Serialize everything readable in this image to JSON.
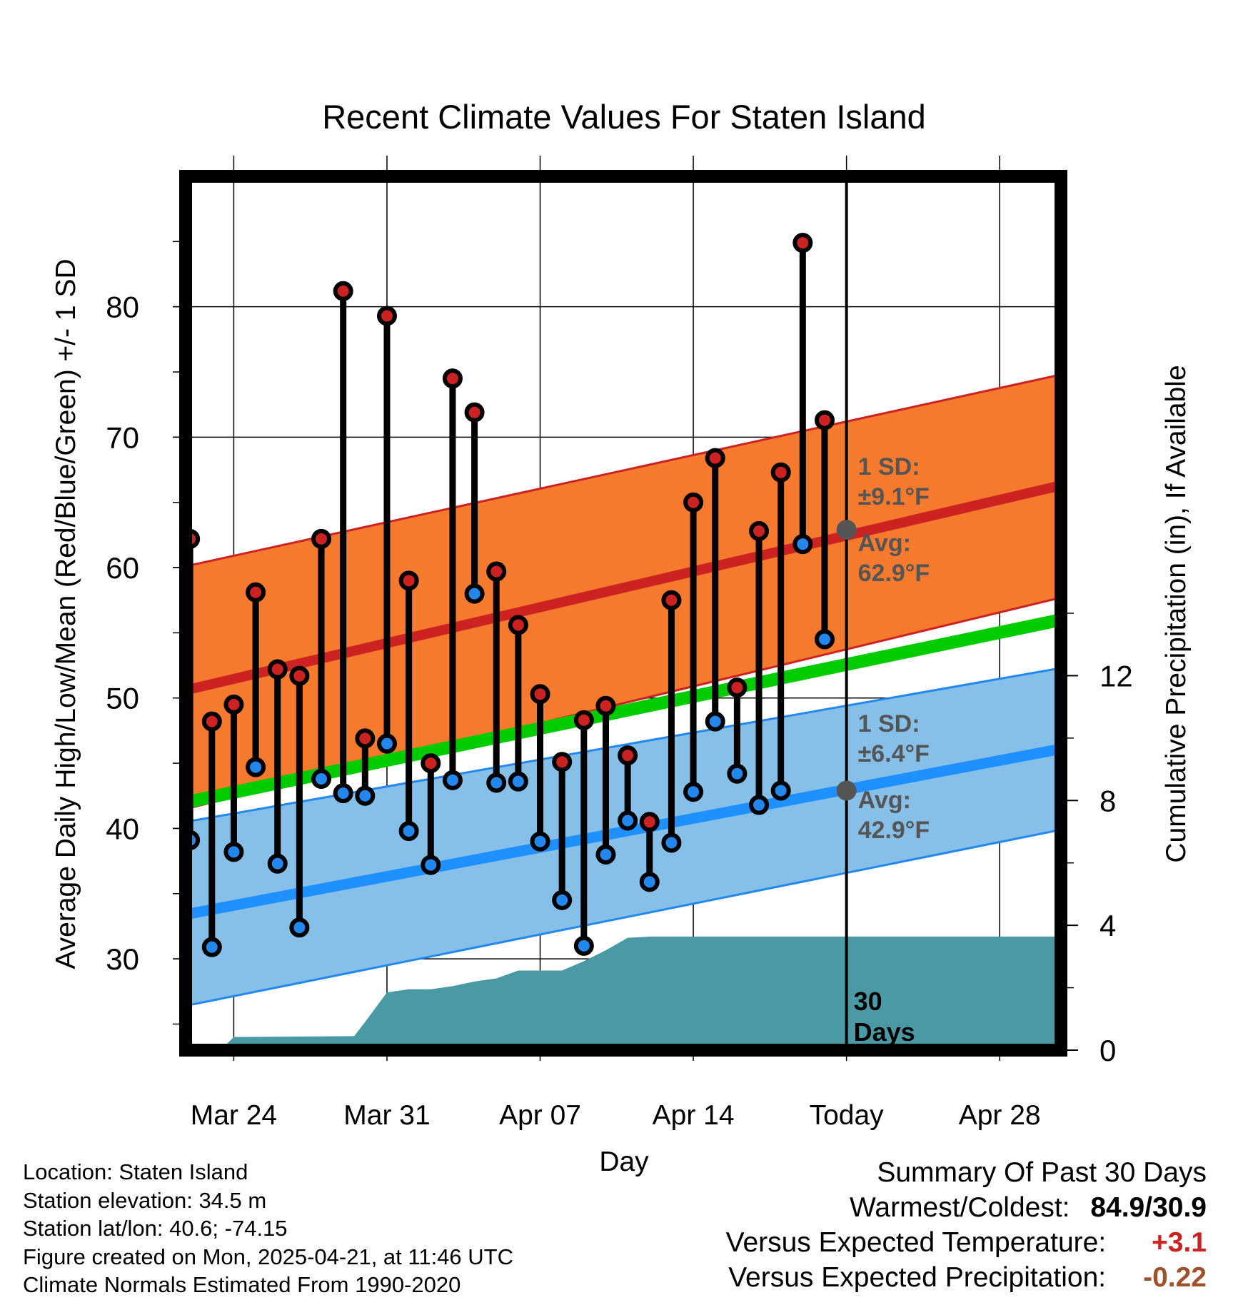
{
  "chart_data": {
    "type": "line",
    "title": "Recent Climate Values For Staten Island",
    "xlabel": "Day",
    "ylabel": "Average Daily High/Low/Mean (Red/Blue/Green) +/- 1 SD",
    "ylabel_right": "Cumulative Precipitation (in), If Available",
    "x_unit": "day index (0 = Mar 24, 2025)",
    "xlim": [
      -2.2,
      37.8
    ],
    "ylim": [
      23.0,
      90.0
    ],
    "ylim_right": [
      0,
      28
    ],
    "x_ticks": [
      {
        "x": 0,
        "label": "Mar 24"
      },
      {
        "x": 7,
        "label": "Mar 31"
      },
      {
        "x": 14,
        "label": "Apr 07"
      },
      {
        "x": 21,
        "label": "Apr 14"
      },
      {
        "x": 28,
        "label": "Today"
      },
      {
        "x": 35,
        "label": "Apr 28"
      }
    ],
    "y_ticks": [
      30,
      40,
      50,
      60,
      70,
      80
    ],
    "y_ticks_right": [
      0,
      4,
      8,
      12
    ],
    "today_x": 28,
    "today_label": "30 Days",
    "days_x": [
      -2,
      -1,
      0,
      1,
      2,
      3,
      4,
      5,
      6,
      7,
      8,
      9,
      10,
      11,
      12,
      13,
      14,
      15,
      16,
      17,
      18,
      19,
      20,
      21,
      22,
      23,
      24,
      25,
      26,
      27
    ],
    "series": [
      {
        "name": "Daily High",
        "color": "#cc2222",
        "values": [
          62.2,
          48.2,
          49.5,
          58.1,
          52.2,
          51.7,
          62.2,
          81.2,
          46.9,
          79.3,
          59.0,
          45.0,
          74.5,
          71.9,
          59.7,
          55.6,
          50.3,
          45.1,
          48.3,
          49.4,
          45.6,
          40.5,
          57.5,
          65.0,
          68.4,
          50.8,
          62.8,
          67.3,
          84.9,
          71.3
        ]
      },
      {
        "name": "Daily Low",
        "color": "#2288ee",
        "values": [
          39.1,
          30.9,
          38.2,
          44.7,
          37.3,
          32.4,
          43.8,
          42.7,
          42.5,
          46.5,
          39.8,
          37.2,
          43.7,
          58.0,
          43.5,
          43.6,
          39.0,
          34.5,
          31.0,
          38.0,
          40.6,
          35.9,
          38.9,
          42.8,
          48.2,
          44.2,
          41.8,
          42.9,
          61.8,
          54.5
        ]
      }
    ],
    "normals": {
      "x": [
        -2.2,
        37.8
      ],
      "high_mean": [
        50.6,
        66.3
      ],
      "high_upper": [
        60.1,
        74.8
      ],
      "high_lower": [
        41.5,
        57.7
      ],
      "low_mean": [
        33.4,
        46.1
      ],
      "low_upper": [
        40.5,
        52.3
      ],
      "low_lower": [
        26.4,
        39.9
      ],
      "daily_mean": [
        42.0,
        56.0
      ]
    },
    "annotations": {
      "high_sd": "1 SD:",
      "high_sd_value": "±9.1°F",
      "high_avg": "Avg:",
      "high_avg_value": "62.9°F",
      "low_sd": "1 SD:",
      "low_sd_value": "±6.4°F",
      "low_avg": "Avg:",
      "low_avg_value": "42.9°F",
      "today_high_avg": 62.9,
      "today_low_avg": 42.9
    },
    "precipitation": {
      "x": [
        -2.2,
        -0.6,
        0.0,
        5.5,
        6.0,
        7.0,
        8.0,
        9.0,
        10.0,
        11.0,
        12.0,
        13.0,
        14.0,
        15.0,
        16.0,
        17.0,
        18.0,
        19.0,
        20.0,
        37.8
      ],
      "value": [
        0.0,
        0.0,
        0.42,
        0.45,
        0.9,
        1.85,
        1.95,
        1.95,
        2.05,
        2.2,
        2.3,
        2.55,
        2.55,
        2.55,
        2.85,
        3.2,
        3.6,
        3.64,
        3.64,
        3.64
      ],
      "color": "#4a9aa5"
    }
  },
  "info": {
    "location": "Location: Staten Island",
    "elevation": "Station elevation: 34.5 m",
    "latlon": "Station lat/lon: 40.6; -74.15",
    "created": "Figure created on Mon, 2025-04-21, at 11:46 UTC",
    "normals": "Climate Normals Estimated From 1990-2020"
  },
  "summary": {
    "title": "Summary Of Past 30 Days",
    "warmest_label": "Warmest/Coldest:",
    "warmest_value": "84.9/30.9",
    "temp_label": "Versus Expected Temperature:",
    "temp_value": "+3.1",
    "temp_color": "#cc2222",
    "precip_label": "Versus Expected Precipitation:",
    "precip_value": "-0.22",
    "precip_color": "#a0522d"
  }
}
